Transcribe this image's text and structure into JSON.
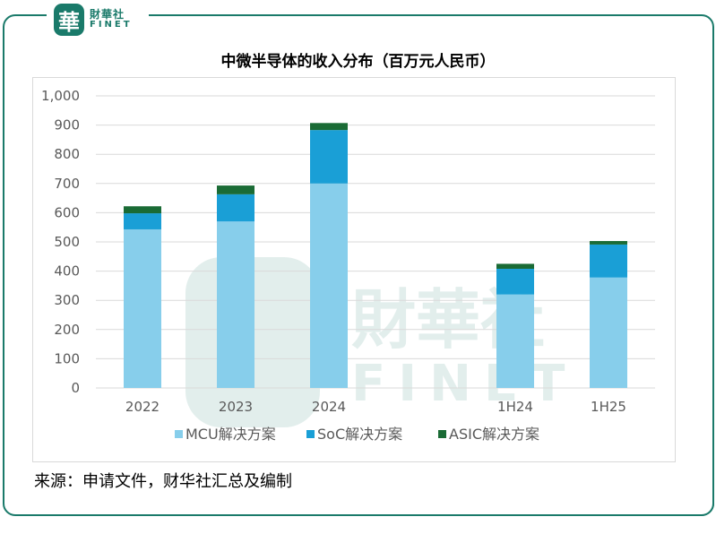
{
  "logo": {
    "seal_char": "華",
    "name_cn": "財華社",
    "name_en": "FINET"
  },
  "chart_data": {
    "type": "bar",
    "stacked": true,
    "title": "中微半导体的收入分布（百万元人民币）",
    "categories": [
      "2022",
      "2023",
      "2024",
      "",
      "1H24",
      "1H25"
    ],
    "series": [
      {
        "name": "MCU解决方案",
        "color": "#87ceeb",
        "values": [
          543,
          570,
          700,
          null,
          320,
          378
        ]
      },
      {
        "name": "SoC解决方案",
        "color": "#1a9fd6",
        "values": [
          55,
          93,
          183,
          null,
          88,
          113
        ]
      },
      {
        "name": "ASIC解决方案",
        "color": "#1a6b35",
        "values": [
          24,
          30,
          24,
          null,
          17,
          12
        ]
      }
    ],
    "ylim": [
      0,
      1000
    ],
    "yticks": [
      "0",
      "100",
      "200",
      "300",
      "400",
      "500",
      "600",
      "700",
      "800",
      "900",
      "1,000"
    ],
    "grid": true,
    "legend_position": "bottom"
  },
  "watermark": {
    "cn": "財華社",
    "en": "FINET"
  },
  "source": "来源：申请文件，财华社汇总及编制"
}
